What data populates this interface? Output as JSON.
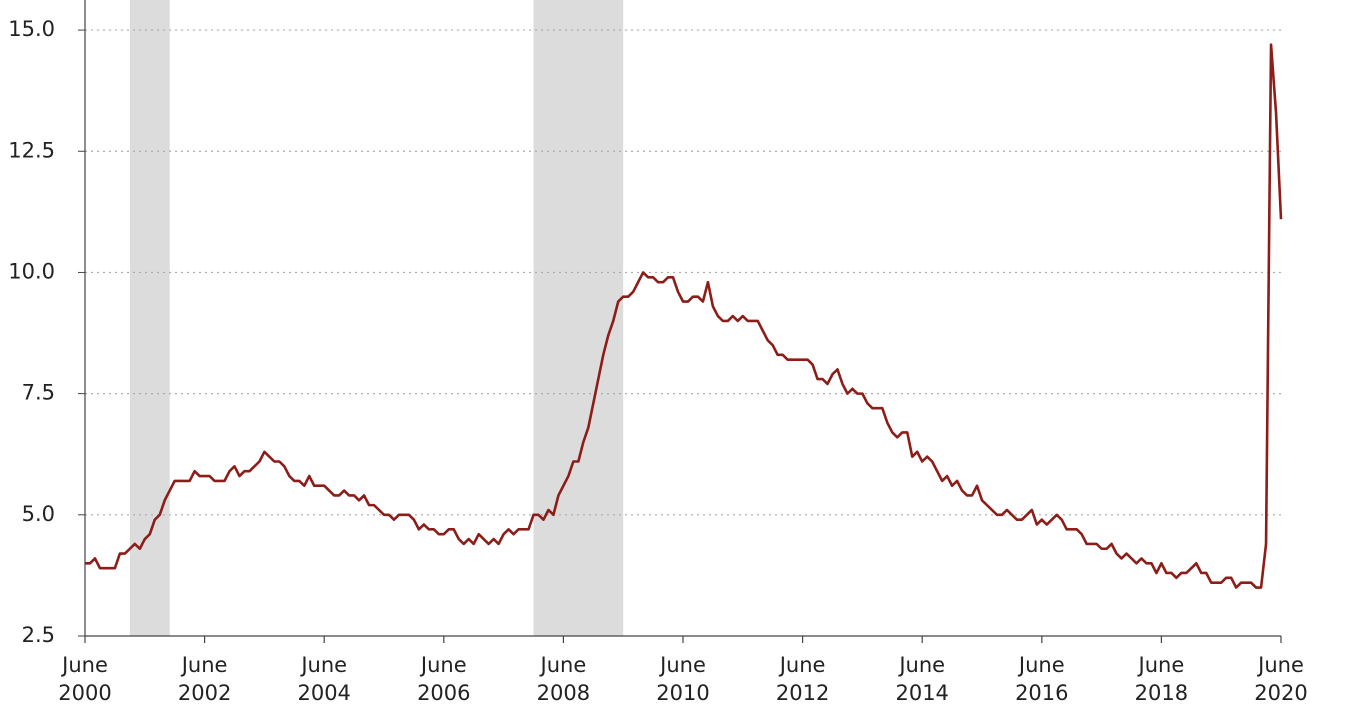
{
  "chart_data": {
    "type": "line",
    "x": [
      "2000-06",
      "2000-07",
      "2000-08",
      "2000-09",
      "2000-10",
      "2000-11",
      "2000-12",
      "2001-01",
      "2001-02",
      "2001-03",
      "2001-04",
      "2001-05",
      "2001-06",
      "2001-07",
      "2001-08",
      "2001-09",
      "2001-10",
      "2001-11",
      "2001-12",
      "2002-01",
      "2002-02",
      "2002-03",
      "2002-04",
      "2002-05",
      "2002-06",
      "2002-07",
      "2002-08",
      "2002-09",
      "2002-10",
      "2002-11",
      "2002-12",
      "2003-01",
      "2003-02",
      "2003-03",
      "2003-04",
      "2003-05",
      "2003-06",
      "2003-07",
      "2003-08",
      "2003-09",
      "2003-10",
      "2003-11",
      "2003-12",
      "2004-01",
      "2004-02",
      "2004-03",
      "2004-04",
      "2004-05",
      "2004-06",
      "2004-07",
      "2004-08",
      "2004-09",
      "2004-10",
      "2004-11",
      "2004-12",
      "2005-01",
      "2005-02",
      "2005-03",
      "2005-04",
      "2005-05",
      "2005-06",
      "2005-07",
      "2005-08",
      "2005-09",
      "2005-10",
      "2005-11",
      "2005-12",
      "2006-01",
      "2006-02",
      "2006-03",
      "2006-04",
      "2006-05",
      "2006-06",
      "2006-07",
      "2006-08",
      "2006-09",
      "2006-10",
      "2006-11",
      "2006-12",
      "2007-01",
      "2007-02",
      "2007-03",
      "2007-04",
      "2007-05",
      "2007-06",
      "2007-07",
      "2007-08",
      "2007-09",
      "2007-10",
      "2007-11",
      "2007-12",
      "2008-01",
      "2008-02",
      "2008-03",
      "2008-04",
      "2008-05",
      "2008-06",
      "2008-07",
      "2008-08",
      "2008-09",
      "2008-10",
      "2008-11",
      "2008-12",
      "2009-01",
      "2009-02",
      "2009-03",
      "2009-04",
      "2009-05",
      "2009-06",
      "2009-07",
      "2009-08",
      "2009-09",
      "2009-10",
      "2009-11",
      "2009-12",
      "2010-01",
      "2010-02",
      "2010-03",
      "2010-04",
      "2010-05",
      "2010-06",
      "2010-07",
      "2010-08",
      "2010-09",
      "2010-10",
      "2010-11",
      "2010-12",
      "2011-01",
      "2011-02",
      "2011-03",
      "2011-04",
      "2011-05",
      "2011-06",
      "2011-07",
      "2011-08",
      "2011-09",
      "2011-10",
      "2011-11",
      "2011-12",
      "2012-01",
      "2012-02",
      "2012-03",
      "2012-04",
      "2012-05",
      "2012-06",
      "2012-07",
      "2012-08",
      "2012-09",
      "2012-10",
      "2012-11",
      "2012-12",
      "2013-01",
      "2013-02",
      "2013-03",
      "2013-04",
      "2013-05",
      "2013-06",
      "2013-07",
      "2013-08",
      "2013-09",
      "2013-10",
      "2013-11",
      "2013-12",
      "2014-01",
      "2014-02",
      "2014-03",
      "2014-04",
      "2014-05",
      "2014-06",
      "2014-07",
      "2014-08",
      "2014-09",
      "2014-10",
      "2014-11",
      "2014-12",
      "2015-01",
      "2015-02",
      "2015-03",
      "2015-04",
      "2015-05",
      "2015-06",
      "2015-07",
      "2015-08",
      "2015-09",
      "2015-10",
      "2015-11",
      "2015-12",
      "2016-01",
      "2016-02",
      "2016-03",
      "2016-04",
      "2016-05",
      "2016-06",
      "2016-07",
      "2016-08",
      "2016-09",
      "2016-10",
      "2016-11",
      "2016-12",
      "2017-01",
      "2017-02",
      "2017-03",
      "2017-04",
      "2017-05",
      "2017-06",
      "2017-07",
      "2017-08",
      "2017-09",
      "2017-10",
      "2017-11",
      "2017-12",
      "2018-01",
      "2018-02",
      "2018-03",
      "2018-04",
      "2018-05",
      "2018-06",
      "2018-07",
      "2018-08",
      "2018-09",
      "2018-10",
      "2018-11",
      "2018-12",
      "2019-01",
      "2019-02",
      "2019-03",
      "2019-04",
      "2019-05",
      "2019-06",
      "2019-07",
      "2019-08",
      "2019-09",
      "2019-10",
      "2019-11",
      "2019-12",
      "2020-01",
      "2020-02",
      "2020-03",
      "2020-04",
      "2020-05",
      "2020-06"
    ],
    "values": [
      4.0,
      4.0,
      4.1,
      3.9,
      3.9,
      3.9,
      3.9,
      4.2,
      4.2,
      4.3,
      4.4,
      4.3,
      4.5,
      4.6,
      4.9,
      5.0,
      5.3,
      5.5,
      5.7,
      5.7,
      5.7,
      5.7,
      5.9,
      5.8,
      5.8,
      5.8,
      5.7,
      5.7,
      5.7,
      5.9,
      6.0,
      5.8,
      5.9,
      5.9,
      6.0,
      6.1,
      6.3,
      6.2,
      6.1,
      6.1,
      6.0,
      5.8,
      5.7,
      5.7,
      5.6,
      5.8,
      5.6,
      5.6,
      5.6,
      5.5,
      5.4,
      5.4,
      5.5,
      5.4,
      5.4,
      5.3,
      5.4,
      5.2,
      5.2,
      5.1,
      5.0,
      5.0,
      4.9,
      5.0,
      5.0,
      5.0,
      4.9,
      4.7,
      4.8,
      4.7,
      4.7,
      4.6,
      4.6,
      4.7,
      4.7,
      4.5,
      4.4,
      4.5,
      4.4,
      4.6,
      4.5,
      4.4,
      4.5,
      4.4,
      4.6,
      4.7,
      4.6,
      4.7,
      4.7,
      4.7,
      5.0,
      5.0,
      4.9,
      5.1,
      5.0,
      5.4,
      5.6,
      5.8,
      6.1,
      6.1,
      6.5,
      6.8,
      7.3,
      7.8,
      8.3,
      8.7,
      9.0,
      9.4,
      9.5,
      9.5,
      9.6,
      9.8,
      10.0,
      9.9,
      9.9,
      9.8,
      9.8,
      9.9,
      9.9,
      9.6,
      9.4,
      9.4,
      9.5,
      9.5,
      9.4,
      9.8,
      9.3,
      9.1,
      9.0,
      9.0,
      9.1,
      9.0,
      9.1,
      9.0,
      9.0,
      9.0,
      8.8,
      8.6,
      8.5,
      8.3,
      8.3,
      8.2,
      8.2,
      8.2,
      8.2,
      8.2,
      8.1,
      7.8,
      7.8,
      7.7,
      7.9,
      8.0,
      7.7,
      7.5,
      7.6,
      7.5,
      7.5,
      7.3,
      7.2,
      7.2,
      7.2,
      6.9,
      6.7,
      6.6,
      6.7,
      6.7,
      6.2,
      6.3,
      6.1,
      6.2,
      6.1,
      5.9,
      5.7,
      5.8,
      5.6,
      5.7,
      5.5,
      5.4,
      5.4,
      5.6,
      5.3,
      5.2,
      5.1,
      5.0,
      5.0,
      5.1,
      5.0,
      4.9,
      4.9,
      5.0,
      5.1,
      4.8,
      4.9,
      4.8,
      4.9,
      5.0,
      4.9,
      4.7,
      4.7,
      4.7,
      4.6,
      4.4,
      4.4,
      4.4,
      4.3,
      4.3,
      4.4,
      4.2,
      4.1,
      4.2,
      4.1,
      4.0,
      4.1,
      4.0,
      4.0,
      3.8,
      4.0,
      3.8,
      3.8,
      3.7,
      3.8,
      3.8,
      3.9,
      4.0,
      3.8,
      3.8,
      3.6,
      3.6,
      3.6,
      3.7,
      3.7,
      3.5,
      3.6,
      3.6,
      3.6,
      3.5,
      3.5,
      4.4,
      14.7,
      13.3,
      11.1
    ],
    "color": "#8c1d18",
    "recessions": [
      [
        "2001-03",
        "2001-11"
      ],
      [
        "2007-12",
        "2009-06"
      ]
    ],
    "recession_color": "#dcdcdc",
    "xlim": [
      "2000-06",
      "2020-06"
    ],
    "xticks": [
      {
        "value": "2000-06",
        "label": [
          "June",
          "2000"
        ]
      },
      {
        "value": "2002-06",
        "label": [
          "June",
          "2002"
        ]
      },
      {
        "value": "2004-06",
        "label": [
          "June",
          "2004"
        ]
      },
      {
        "value": "2006-06",
        "label": [
          "June",
          "2006"
        ]
      },
      {
        "value": "2008-06",
        "label": [
          "June",
          "2008"
        ]
      },
      {
        "value": "2010-06",
        "label": [
          "June",
          "2010"
        ]
      },
      {
        "value": "2012-06",
        "label": [
          "June",
          "2012"
        ]
      },
      {
        "value": "2014-06",
        "label": [
          "June",
          "2014"
        ]
      },
      {
        "value": "2016-06",
        "label": [
          "June",
          "2016"
        ]
      },
      {
        "value": "2018-06",
        "label": [
          "June",
          "2018"
        ]
      },
      {
        "value": "2020-06",
        "label": [
          "June",
          "2020"
        ]
      }
    ],
    "ylim": [
      2.5,
      15.6
    ],
    "yticks": [
      2.5,
      {
        "value": 5,
        "label": "5.0"
      },
      7.5,
      {
        "value": 10,
        "label": "10.0"
      },
      12.5,
      {
        "value": 15,
        "label": "15.0"
      }
    ],
    "grid": true
  }
}
